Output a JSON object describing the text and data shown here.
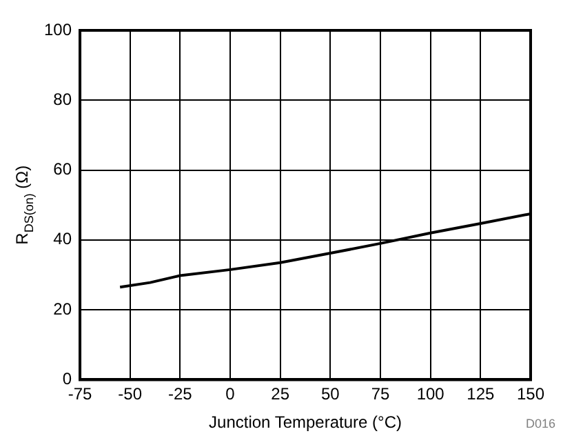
{
  "chart_data": {
    "type": "line",
    "xlabel": "Junction Temperature (°C)",
    "ylabel": "R$_{DS(on)}$ (Ω)",
    "annotations": [
      "D016"
    ],
    "x": [
      -55,
      -40,
      -25,
      0,
      25,
      50,
      75,
      100,
      125,
      150
    ],
    "series": [
      {
        "color": "#000000",
        "values": [
          26.5,
          27.8,
          29.8,
          31.5,
          33.5,
          36.2,
          39,
          42,
          44.7,
          47.5
        ]
      }
    ],
    "xlim": [
      -75,
      150
    ],
    "xticks": [
      -75,
      -50,
      -25,
      0,
      25,
      50,
      75,
      100,
      125,
      150
    ],
    "ylim": [
      0,
      100
    ],
    "yticks": [
      0,
      20,
      40,
      60,
      80,
      100
    ],
    "grid": true,
    "legend": false,
    "marker": "none",
    "line_style": "solid"
  }
}
